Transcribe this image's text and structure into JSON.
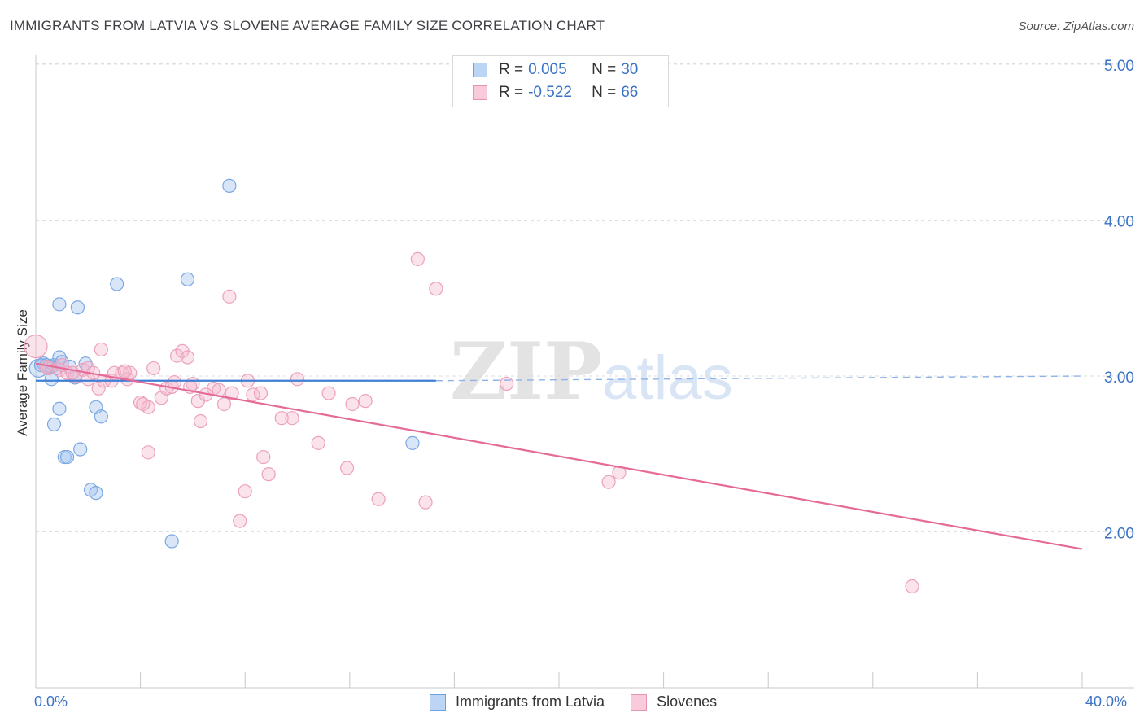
{
  "title": "IMMIGRANTS FROM LATVIA VS SLOVENE AVERAGE FAMILY SIZE CORRELATION CHART",
  "source": "Source: ZipAtlas.com",
  "watermark": {
    "zip": "ZIP",
    "atlas": "atlas"
  },
  "legend": {
    "rows": [
      {
        "r_label": "R =",
        "r_value": "0.005",
        "n_label": "N =",
        "n_value": "30",
        "color": "#a9c8f0"
      },
      {
        "r_label": "R =",
        "r_value": "-0.522",
        "n_label": "N =",
        "n_value": "66",
        "color": "#f5b9cd"
      }
    ]
  },
  "bottom_legend": [
    {
      "label": "Immigrants from Latvia",
      "color": "#a9c8f0"
    },
    {
      "label": "Slovenes",
      "color": "#f5b9cd"
    }
  ],
  "chart_data": {
    "type": "scatter",
    "title": "IMMIGRANTS FROM LATVIA VS SLOVENE AVERAGE FAMILY SIZE CORRELATION CHART",
    "xlabel": "",
    "ylabel": "Average Family Size",
    "xlim": [
      0,
      40
    ],
    "ylim": [
      1.0,
      5.1
    ],
    "x_tick_labels": [
      "0.0%",
      "40.0%"
    ],
    "y_ticks": [
      2.0,
      3.0,
      4.0,
      5.0
    ],
    "y_tick_labels": [
      "2.00",
      "3.00",
      "4.00",
      "5.00"
    ],
    "grid": true,
    "legend_position": "top-center",
    "series": [
      {
        "name": "Immigrants from Latvia",
        "color": "#6fa0e0",
        "fill": "#a9c8f0",
        "trend": {
          "x0": 0,
          "y0": 2.97,
          "x1": 15.3,
          "y1": 2.97,
          "dashed_to": 40,
          "dashed_y": 3.0
        },
        "points": [
          [
            0.1,
            3.05
          ],
          [
            0.3,
            3.08
          ],
          [
            0.4,
            3.07
          ],
          [
            0.5,
            3.06
          ],
          [
            0.6,
            3.06
          ],
          [
            0.7,
            3.07
          ],
          [
            0.8,
            3.05
          ],
          [
            0.9,
            3.12
          ],
          [
            1.0,
            3.09
          ],
          [
            1.3,
            3.06
          ],
          [
            1.9,
            3.08
          ],
          [
            0.6,
            2.98
          ],
          [
            1.5,
            2.99
          ],
          [
            0.7,
            2.69
          ],
          [
            0.9,
            2.79
          ],
          [
            0.9,
            3.46
          ],
          [
            1.6,
            3.44
          ],
          [
            3.1,
            3.59
          ],
          [
            5.8,
            3.62
          ],
          [
            7.4,
            4.22
          ],
          [
            2.3,
            2.8
          ],
          [
            2.5,
            2.74
          ],
          [
            1.1,
            2.48
          ],
          [
            1.2,
            2.48
          ],
          [
            1.7,
            2.53
          ],
          [
            2.1,
            2.27
          ],
          [
            2.3,
            2.25
          ],
          [
            5.2,
            1.94
          ],
          [
            14.4,
            2.57
          ],
          [
            0.2,
            3.07
          ]
        ]
      },
      {
        "name": "Slovenes",
        "color": "#e76c9b",
        "fill": "#f5b9cd",
        "trend": {
          "x0": 0,
          "y0": 3.08,
          "x1": 40,
          "y1": 1.89
        },
        "points": [
          [
            0.0,
            3.19
          ],
          [
            0.5,
            3.05
          ],
          [
            0.9,
            3.04
          ],
          [
            1.2,
            3.02
          ],
          [
            1.5,
            3.0
          ],
          [
            1.8,
            3.04
          ],
          [
            2.0,
            3.05
          ],
          [
            2.2,
            3.02
          ],
          [
            2.4,
            2.92
          ],
          [
            2.6,
            2.97
          ],
          [
            2.9,
            2.97
          ],
          [
            3.0,
            3.02
          ],
          [
            3.3,
            3.02
          ],
          [
            3.5,
            2.98
          ],
          [
            3.6,
            3.02
          ],
          [
            4.0,
            2.83
          ],
          [
            4.3,
            2.8
          ],
          [
            4.5,
            3.05
          ],
          [
            4.8,
            2.86
          ],
          [
            5.0,
            2.92
          ],
          [
            5.2,
            2.93
          ],
          [
            5.3,
            2.96
          ],
          [
            5.4,
            3.13
          ],
          [
            5.6,
            3.16
          ],
          [
            5.8,
            3.12
          ],
          [
            6.0,
            2.95
          ],
          [
            6.2,
            2.84
          ],
          [
            6.3,
            2.71
          ],
          [
            6.8,
            2.92
          ],
          [
            7.0,
            2.91
          ],
          [
            7.2,
            2.82
          ],
          [
            7.5,
            2.89
          ],
          [
            8.1,
            2.97
          ],
          [
            8.3,
            2.88
          ],
          [
            8.6,
            2.89
          ],
          [
            8.7,
            2.48
          ],
          [
            8.9,
            2.37
          ],
          [
            9.4,
            2.73
          ],
          [
            9.8,
            2.73
          ],
          [
            10.0,
            2.98
          ],
          [
            10.8,
            2.57
          ],
          [
            11.2,
            2.89
          ],
          [
            11.9,
            2.41
          ],
          [
            12.1,
            2.82
          ],
          [
            12.6,
            2.84
          ],
          [
            13.1,
            2.21
          ],
          [
            14.9,
            2.19
          ],
          [
            15.3,
            3.56
          ],
          [
            14.6,
            3.75
          ],
          [
            7.4,
            3.51
          ],
          [
            7.8,
            2.07
          ],
          [
            8.0,
            2.26
          ],
          [
            2.5,
            3.17
          ],
          [
            1.4,
            3.02
          ],
          [
            0.4,
            3.06
          ],
          [
            1.0,
            3.07
          ],
          [
            4.3,
            2.51
          ],
          [
            18.0,
            2.95
          ],
          [
            21.9,
            2.32
          ],
          [
            22.3,
            2.38
          ],
          [
            33.5,
            1.65
          ],
          [
            6.5,
            2.88
          ],
          [
            4.1,
            2.82
          ],
          [
            3.4,
            3.03
          ],
          [
            2.0,
            2.98
          ],
          [
            5.9,
            2.93
          ]
        ]
      }
    ]
  }
}
